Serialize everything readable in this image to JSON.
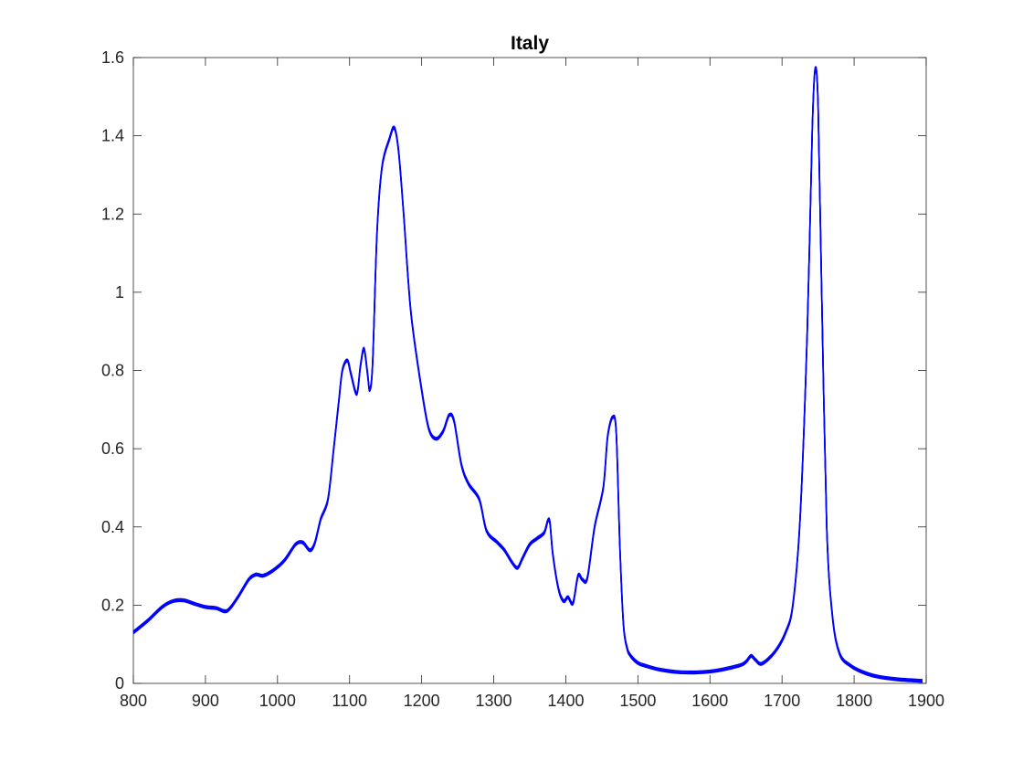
{
  "chart_data": {
    "type": "line",
    "title": "Italy",
    "xlabel": "",
    "ylabel": "",
    "xlim": [
      800,
      1900
    ],
    "ylim": [
      0,
      1.6
    ],
    "xticks": [
      800,
      900,
      1000,
      1100,
      1200,
      1300,
      1400,
      1500,
      1600,
      1700,
      1800,
      1900
    ],
    "yticks": [
      0,
      0.2,
      0.4,
      0.6,
      0.8,
      1,
      1.2,
      1.4,
      1.6
    ],
    "xtick_labels": [
      "800",
      "900",
      "1000",
      "1100",
      "1200",
      "1300",
      "1400",
      "1500",
      "1600",
      "1700",
      "1800",
      "1900"
    ],
    "ytick_labels": [
      "0",
      "0.2",
      "0.4",
      "0.6",
      "0.8",
      "1",
      "1.2",
      "1.4",
      "1.6"
    ],
    "grid": false,
    "series_color": "#0000ff",
    "series": [
      {
        "x": [
          800,
          820,
          840,
          855,
          870,
          885,
          900,
          915,
          930,
          945,
          960,
          970,
          980,
          995,
          1010,
          1025,
          1035,
          1045,
          1052,
          1060,
          1070,
          1078,
          1085,
          1090,
          1097,
          1102,
          1110,
          1115,
          1120,
          1125,
          1128,
          1132,
          1138,
          1145,
          1155,
          1162,
          1168,
          1175,
          1185,
          1200,
          1210,
          1220,
          1230,
          1238,
          1245,
          1255,
          1265,
          1280,
          1290,
          1305,
          1315,
          1325,
          1333,
          1340,
          1350,
          1360,
          1370,
          1375,
          1378,
          1382,
          1390,
          1397,
          1403,
          1410,
          1417,
          1423,
          1430,
          1440,
          1452,
          1458,
          1465,
          1470,
          1475,
          1480,
          1485,
          1490,
          1500,
          1510,
          1530,
          1560,
          1600,
          1640,
          1650,
          1657,
          1663,
          1672,
          1690,
          1705,
          1715,
          1725,
          1735,
          1742,
          1746,
          1750,
          1755,
          1762,
          1770,
          1780,
          1795,
          1810,
          1830,
          1860,
          1895
        ],
        "y": [
          0.13,
          0.16,
          0.195,
          0.21,
          0.212,
          0.203,
          0.195,
          0.192,
          0.185,
          0.22,
          0.265,
          0.278,
          0.275,
          0.29,
          0.315,
          0.355,
          0.36,
          0.34,
          0.36,
          0.42,
          0.47,
          0.6,
          0.72,
          0.8,
          0.825,
          0.79,
          0.74,
          0.81,
          0.855,
          0.79,
          0.75,
          0.82,
          1.15,
          1.32,
          1.39,
          1.42,
          1.36,
          1.2,
          0.95,
          0.75,
          0.65,
          0.625,
          0.645,
          0.685,
          0.67,
          0.56,
          0.51,
          0.47,
          0.39,
          0.36,
          0.34,
          0.31,
          0.295,
          0.32,
          0.355,
          0.37,
          0.385,
          0.415,
          0.41,
          0.33,
          0.24,
          0.21,
          0.22,
          0.205,
          0.275,
          0.265,
          0.27,
          0.4,
          0.5,
          0.63,
          0.68,
          0.64,
          0.35,
          0.15,
          0.09,
          0.07,
          0.052,
          0.045,
          0.035,
          0.028,
          0.03,
          0.045,
          0.055,
          0.07,
          0.06,
          0.05,
          0.08,
          0.13,
          0.2,
          0.42,
          0.9,
          1.42,
          1.57,
          1.48,
          1.0,
          0.4,
          0.17,
          0.075,
          0.045,
          0.03,
          0.018,
          0.01,
          0.006
        ]
      }
    ]
  }
}
